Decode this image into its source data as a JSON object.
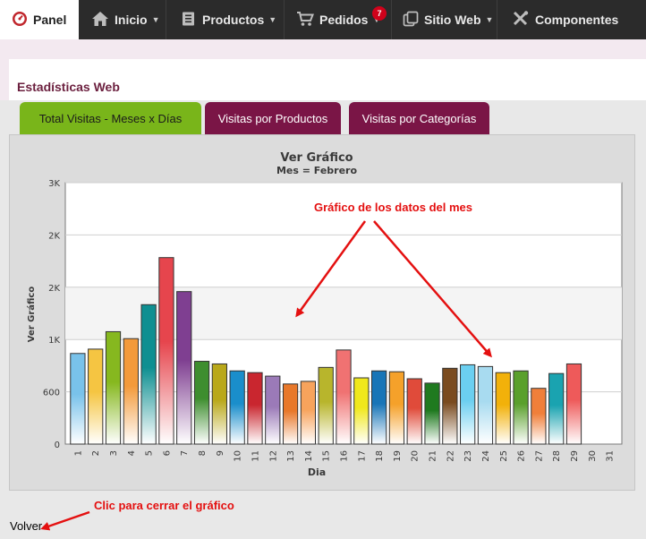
{
  "nav": {
    "items": [
      {
        "label": "Panel",
        "icon": "dashboard-icon"
      },
      {
        "label": "Inicio",
        "icon": "home-icon"
      },
      {
        "label": "Productos",
        "icon": "book-icon"
      },
      {
        "label": "Pedidos",
        "icon": "cart-icon"
      },
      {
        "label": "Sitio Web",
        "icon": "copy-icon"
      },
      {
        "label": "Componentes",
        "icon": "tools-icon"
      }
    ],
    "orders_badge": "7"
  },
  "section_title": "Estadísticas Web",
  "tabs": [
    {
      "label": "Total Visitas - Meses x Días",
      "active": true
    },
    {
      "label": "Visitas por Productos",
      "active": false
    },
    {
      "label": "Visitas por Categorías",
      "active": false
    }
  ],
  "chart_data": {
    "type": "bar",
    "title": "Ver Gráfico",
    "subtitle": "Mes = Febrero",
    "xlabel": "Dia",
    "ylabel": "Ver Gráfico",
    "yticks": [
      {
        "label": "0",
        "value": 0
      },
      {
        "label": "600",
        "value": 600
      },
      {
        "label": "1K",
        "value": 1200
      },
      {
        "label": "2K",
        "value": 1800
      },
      {
        "label": "2K",
        "value": 2400
      },
      {
        "label": "3K",
        "value": 3000
      }
    ],
    "ylim": [
      0,
      3000
    ],
    "grid": true,
    "categories": [
      "1",
      "2",
      "3",
      "4",
      "5",
      "6",
      "7",
      "8",
      "9",
      "10",
      "11",
      "12",
      "13",
      "14",
      "15",
      "16",
      "17",
      "18",
      "19",
      "20",
      "21",
      "22",
      "23",
      "24",
      "25",
      "26",
      "27",
      "28",
      "29",
      "30",
      "31"
    ],
    "values": [
      1040,
      1090,
      1290,
      1210,
      1600,
      2140,
      1750,
      950,
      920,
      840,
      820,
      780,
      690,
      720,
      880,
      1080,
      760,
      840,
      830,
      750,
      700,
      870,
      910,
      890,
      820,
      840,
      640,
      810,
      920,
      0,
      0
    ],
    "colors": [
      "#79c2ea",
      "#f5c542",
      "#86b81f",
      "#f39a3b",
      "#0e8f91",
      "#e6454d",
      "#7f3f91",
      "#3e8e2f",
      "#b9a81a",
      "#1a8ecb",
      "#c9262f",
      "#9b7ab8",
      "#e8782a",
      "#f7a35c",
      "#b8b52c",
      "#f07272",
      "#f0e81c",
      "#1875b7",
      "#f5a12a",
      "#e04b3a",
      "#1f7a1f",
      "#7a4b1f",
      "#6bcff0",
      "#a8dbf0",
      "#f2b10a",
      "#5aa02c",
      "#f07f3a",
      "#1aa3b0",
      "#ee5a5a",
      "#cccccc",
      "#cccccc"
    ]
  },
  "annotations": {
    "chart_note": "Gráfico de los datos del mes",
    "close_note": "Clic para cerrar el gráfico"
  },
  "volver_label": "Volver"
}
